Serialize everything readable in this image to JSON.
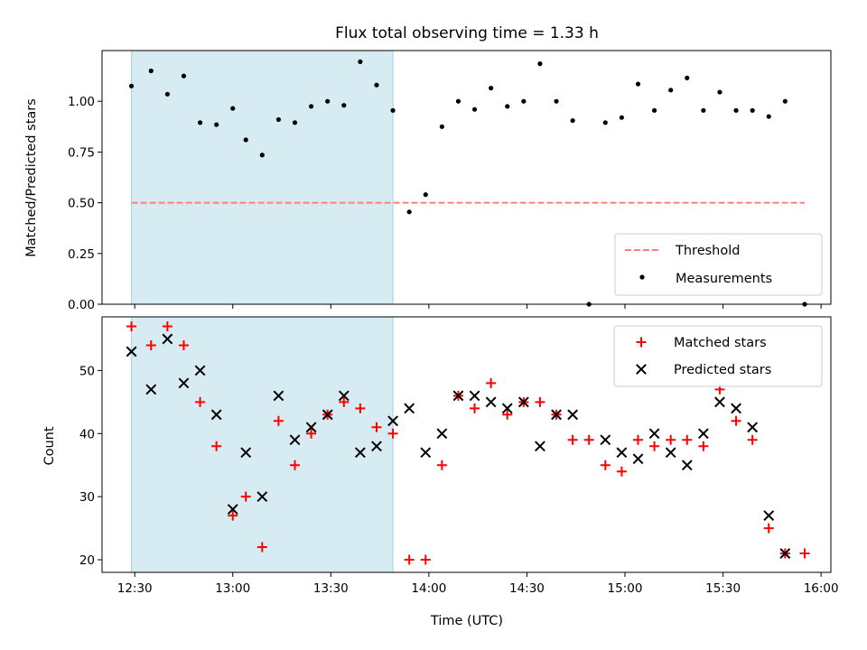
{
  "chart_data": [
    {
      "type": "scatter",
      "title": "Flux total observing time = 1.33 h",
      "xlabel": "",
      "ylabel": "Matched/Predicted stars",
      "ylim": [
        0,
        1.25
      ],
      "yticks": [
        "0.00",
        "0.25",
        "0.50",
        "0.75",
        "1.00"
      ],
      "xlim": [
        "12:20",
        "16:03"
      ],
      "shaded_region": {
        "x_start": "12:29",
        "x_end": "13:49",
        "color": "#add8e6"
      },
      "threshold": {
        "name": "Threshold",
        "value": 0.5,
        "x_start": "12:29",
        "x_end": "15:55",
        "color": "#ff7f7f",
        "style": "dashed"
      },
      "legend": {
        "placement": "lower-right",
        "entries": [
          "Threshold",
          "Measurements"
        ]
      },
      "series": [
        {
          "name": "Measurements",
          "color": "#000000",
          "marker": "dot",
          "points": [
            [
              "12:29",
              1.075
            ],
            [
              "12:35",
              1.15
            ],
            [
              "12:40",
              1.035
            ],
            [
              "12:45",
              1.125
            ],
            [
              "12:50",
              0.895
            ],
            [
              "12:55",
              0.885
            ],
            [
              "13:00",
              0.965
            ],
            [
              "13:04",
              0.81
            ],
            [
              "13:09",
              0.735
            ],
            [
              "13:14",
              0.91
            ],
            [
              "13:19",
              0.895
            ],
            [
              "13:24",
              0.975
            ],
            [
              "13:29",
              1.0
            ],
            [
              "13:34",
              0.98
            ],
            [
              "13:39",
              1.195
            ],
            [
              "13:44",
              1.08
            ],
            [
              "13:49",
              0.955
            ],
            [
              "13:54",
              0.455
            ],
            [
              "13:59",
              0.54
            ],
            [
              "14:04",
              0.875
            ],
            [
              "14:09",
              1.0
            ],
            [
              "14:14",
              0.96
            ],
            [
              "14:19",
              1.065
            ],
            [
              "14:24",
              0.975
            ],
            [
              "14:29",
              1.0
            ],
            [
              "14:34",
              1.185
            ],
            [
              "14:39",
              1.0
            ],
            [
              "14:44",
              0.905
            ],
            [
              "14:49",
              0.0
            ],
            [
              "14:54",
              0.895
            ],
            [
              "14:59",
              0.92
            ],
            [
              "15:04",
              1.085
            ],
            [
              "15:09",
              0.955
            ],
            [
              "15:14",
              1.055
            ],
            [
              "15:19",
              1.115
            ],
            [
              "15:24",
              0.955
            ],
            [
              "15:29",
              1.045
            ],
            [
              "15:34",
              0.955
            ],
            [
              "15:39",
              0.955
            ],
            [
              "15:44",
              0.925
            ],
            [
              "15:49",
              1.0
            ],
            [
              "15:55",
              0.0
            ]
          ]
        }
      ]
    },
    {
      "type": "scatter",
      "title": "",
      "xlabel": "Time (UTC)",
      "ylabel": "Count",
      "ylim": [
        18,
        58.5
      ],
      "yticks": [
        "20",
        "30",
        "40",
        "50"
      ],
      "xlim": [
        "12:20",
        "16:03"
      ],
      "xticks": [
        "12:30",
        "13:00",
        "13:30",
        "14:00",
        "14:30",
        "15:00",
        "15:30",
        "16:00"
      ],
      "shaded_region": {
        "x_start": "12:29",
        "x_end": "13:49",
        "color": "#add8e6"
      },
      "legend": {
        "placement": "top-right",
        "entries": [
          "Matched stars",
          "Predicted stars"
        ]
      },
      "series": [
        {
          "name": "Matched stars",
          "color": "#ff0000",
          "marker": "plus",
          "points": [
            [
              "12:29",
              57
            ],
            [
              "12:35",
              54
            ],
            [
              "12:40",
              57
            ],
            [
              "12:45",
              54
            ],
            [
              "12:50",
              45
            ],
            [
              "12:55",
              38
            ],
            [
              "13:00",
              27
            ],
            [
              "13:04",
              30
            ],
            [
              "13:09",
              22
            ],
            [
              "13:14",
              42
            ],
            [
              "13:19",
              35
            ],
            [
              "13:24",
              40
            ],
            [
              "13:29",
              43
            ],
            [
              "13:34",
              45
            ],
            [
              "13:39",
              44
            ],
            [
              "13:44",
              41
            ],
            [
              "13:49",
              40
            ],
            [
              "13:54",
              20
            ],
            [
              "13:59",
              20
            ],
            [
              "14:04",
              35
            ],
            [
              "14:09",
              46
            ],
            [
              "14:14",
              44
            ],
            [
              "14:19",
              48
            ],
            [
              "14:24",
              43
            ],
            [
              "14:29",
              45
            ],
            [
              "14:34",
              45
            ],
            [
              "14:39",
              43
            ],
            [
              "14:44",
              39
            ],
            [
              "14:49",
              39
            ],
            [
              "14:54",
              35
            ],
            [
              "14:59",
              34
            ],
            [
              "15:04",
              39
            ],
            [
              "15:09",
              38
            ],
            [
              "15:14",
              39
            ],
            [
              "15:19",
              39
            ],
            [
              "15:24",
              38
            ],
            [
              "15:29",
              47
            ],
            [
              "15:34",
              42
            ],
            [
              "15:39",
              39
            ],
            [
              "15:44",
              25
            ],
            [
              "15:49",
              21
            ],
            [
              "15:55",
              21
            ]
          ]
        },
        {
          "name": "Predicted stars",
          "color": "#000000",
          "marker": "x",
          "points": [
            [
              "12:29",
              53
            ],
            [
              "12:35",
              47
            ],
            [
              "12:40",
              55
            ],
            [
              "12:45",
              48
            ],
            [
              "12:50",
              50
            ],
            [
              "12:55",
              43
            ],
            [
              "13:00",
              28
            ],
            [
              "13:04",
              37
            ],
            [
              "13:09",
              30
            ],
            [
              "13:14",
              46
            ],
            [
              "13:19",
              39
            ],
            [
              "13:24",
              41
            ],
            [
              "13:29",
              43
            ],
            [
              "13:34",
              46
            ],
            [
              "13:39",
              37
            ],
            [
              "13:44",
              38
            ],
            [
              "13:49",
              42
            ],
            [
              "13:54",
              44
            ],
            [
              "13:59",
              37
            ],
            [
              "14:04",
              40
            ],
            [
              "14:09",
              46
            ],
            [
              "14:14",
              46
            ],
            [
              "14:19",
              45
            ],
            [
              "14:24",
              44
            ],
            [
              "14:29",
              45
            ],
            [
              "14:34",
              38
            ],
            [
              "14:39",
              43
            ],
            [
              "14:44",
              43
            ],
            [
              "14:54",
              39
            ],
            [
              "14:59",
              37
            ],
            [
              "15:04",
              36
            ],
            [
              "15:09",
              40
            ],
            [
              "15:14",
              37
            ],
            [
              "15:19",
              35
            ],
            [
              "15:24",
              40
            ],
            [
              "15:29",
              45
            ],
            [
              "15:34",
              44
            ],
            [
              "15:39",
              41
            ],
            [
              "15:44",
              27
            ],
            [
              "15:49",
              21
            ]
          ]
        }
      ]
    }
  ]
}
